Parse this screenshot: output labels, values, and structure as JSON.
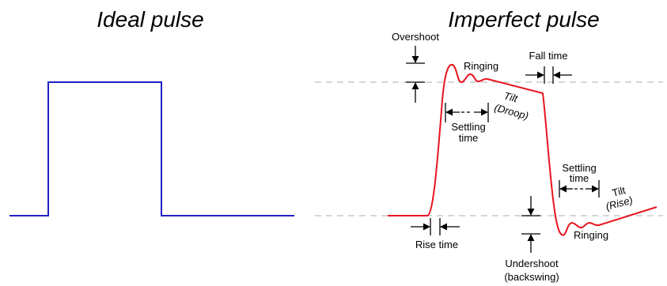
{
  "titles": {
    "ideal": "Ideal pulse",
    "imperfect": "Imperfect pulse"
  },
  "labels": {
    "overshoot": "Overshoot",
    "ringing_top": "Ringing",
    "fall_time": "Fall time",
    "tilt_top": "Tilt",
    "droop": "(Droop)",
    "settling_1a": "Settling",
    "settling_1b": "time",
    "settling_2a": "Settling",
    "settling_2b": "time",
    "tilt_bottom": "Tilt",
    "rise": "(Rise)",
    "ringing_bottom": "Ringing",
    "rise_time": "Rise time",
    "undershoot": "Undershoot",
    "backswing": "(backswing)"
  },
  "colors": {
    "ideal_pulse": "#1f1fc8",
    "imperfect_pulse": "#e8141e",
    "reference_lines": "#c8c8c8",
    "annotation": "#000000"
  }
}
